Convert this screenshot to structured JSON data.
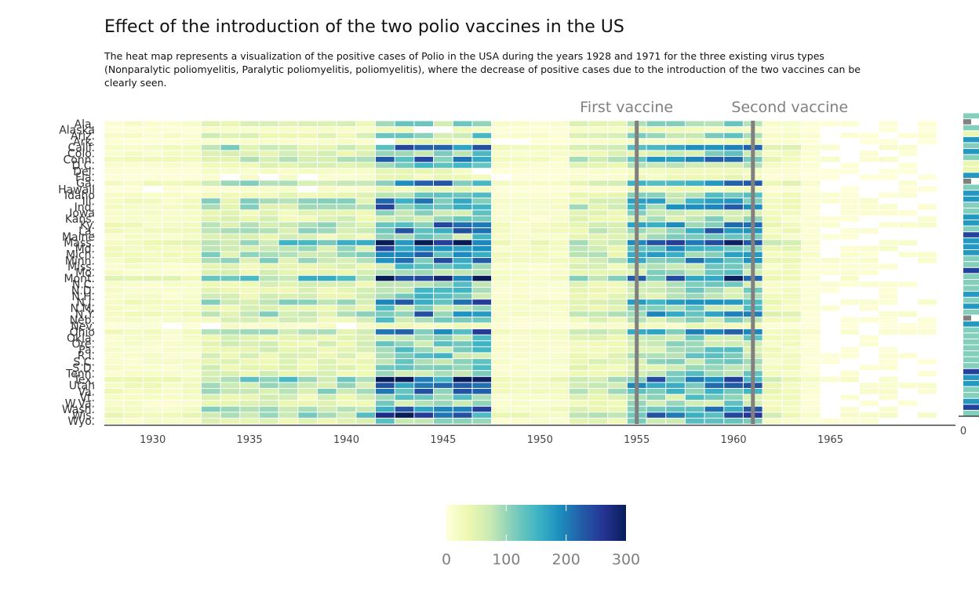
{
  "title": "Effect of the introduction of the two polio vaccines in the US",
  "subtitle": "The heat map represents a visualization of the positive cases of Polio in the USA during the years 1928 and 1971 for the three existing virus types (Nonparalytic poliomyelitis, Paralytic poliomyelitis, poliomyelitis), where the decrease of positive cases due to the introduction of the two vaccines can be clearly seen.",
  "annotations": {
    "first_vaccine": "First vaccine",
    "second_vaccine": "Second vaccine"
  },
  "colors": {
    "scale": [
      "#ffffd9",
      "#edf8b1",
      "#c7e9b4",
      "#7fcdbb",
      "#41b6c4",
      "#1d91c0",
      "#225ea8",
      "#253494",
      "#081d58"
    ],
    "vaccine_line": "#808080",
    "missing_marginal": "#808080"
  },
  "chart_data": {
    "type": "heatmap",
    "title": "Effect of the introduction of the two polio vaccines in the US",
    "x_start": 1928,
    "x_end": 1970,
    "x_ticks": [
      1930,
      1935,
      1940,
      1945,
      1950,
      1955,
      1960,
      1965
    ],
    "rows": [
      "Ala.",
      "Alaska",
      "Ariz.",
      "Ark.",
      "Calif.",
      "Colo.",
      "Conn.",
      "D.C.",
      "Del.",
      "Fla.",
      "Ga.",
      "Hawaii",
      "Idaho",
      "Ill.",
      "Ind.",
      "Iowa",
      "Kans.",
      "Ky.",
      "La.",
      "Maine",
      "Mass.",
      "Md.",
      "Mich.",
      "Minn.",
      "Miss.",
      "Mo.",
      "Mont.",
      "N.C.",
      "N.D.",
      "N.H.",
      "N.J.",
      "N.M.",
      "N.Y.",
      "Neb.",
      "Nev.",
      "Ohio",
      "Okla.",
      "Ore.",
      "Pa.",
      "R.I.",
      "S.C.",
      "S.D.",
      "Tenn.",
      "Tex.",
      "Utah",
      "Va.",
      "Vt.",
      "W.Va.",
      "Wash.",
      "Wis.",
      "Wyo."
    ],
    "row_levels": [
      1,
      0,
      1,
      0,
      2,
      1,
      2,
      1,
      0,
      0,
      2,
      0,
      1,
      2,
      2,
      1,
      1,
      2,
      2,
      1,
      3,
      2,
      2,
      2,
      1,
      1,
      3,
      1,
      1,
      1,
      2,
      1,
      2,
      1,
      0,
      2,
      1,
      1,
      1,
      1,
      1,
      1,
      1,
      3,
      2,
      2,
      1,
      1,
      2,
      3,
      1
    ],
    "vaccine_years": [
      1955,
      1961
    ],
    "colorbar": {
      "min": 0,
      "max": 300,
      "ticks": [
        0,
        100,
        200,
        300
      ]
    },
    "marginal_axis_label": "0"
  }
}
